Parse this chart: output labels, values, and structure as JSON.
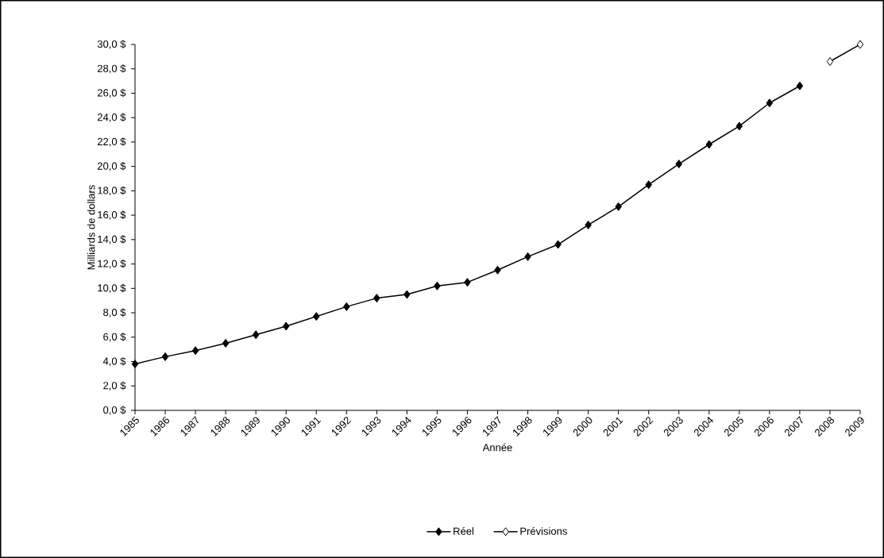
{
  "chart_data": {
    "type": "line",
    "xlabel": "Année",
    "ylabel": "Milliards de dollars",
    "categories": [
      "1985",
      "1986",
      "1987",
      "1988",
      "1989",
      "1990",
      "1991",
      "1992",
      "1993",
      "1994",
      "1995",
      "1996",
      "1997",
      "1998",
      "1999",
      "2000",
      "2001",
      "2002",
      "2003",
      "2004",
      "2005",
      "2006",
      "2007",
      "2008",
      "2009"
    ],
    "series": [
      {
        "name": "Réel",
        "color": "#000000",
        "values": [
          3.8,
          4.4,
          4.9,
          5.5,
          6.2,
          6.9,
          7.7,
          8.5,
          9.2,
          9.5,
          10.2,
          10.5,
          11.5,
          12.6,
          13.6,
          15.2,
          16.7,
          18.5,
          20.2,
          21.8,
          23.3,
          25.2,
          26.6,
          null,
          null
        ]
      },
      {
        "name": "Prévisions",
        "color": "#000000",
        "values": [
          null,
          null,
          null,
          null,
          null,
          null,
          null,
          null,
          null,
          null,
          null,
          null,
          null,
          null,
          null,
          null,
          null,
          null,
          null,
          null,
          null,
          null,
          null,
          28.6,
          30.0
        ]
      }
    ],
    "ylim": [
      0,
      30
    ],
    "yticks": [
      {
        "value": 0,
        "label": "0,0 $"
      },
      {
        "value": 2,
        "label": "2,0 $"
      },
      {
        "value": 4,
        "label": "4,0 $"
      },
      {
        "value": 6,
        "label": "6,0 $"
      },
      {
        "value": 8,
        "label": "8,0 $"
      },
      {
        "value": 10,
        "label": "10,0 $"
      },
      {
        "value": 12,
        "label": "12,0 $"
      },
      {
        "value": 14,
        "label": "14,0 $"
      },
      {
        "value": 16,
        "label": "16,0 $"
      },
      {
        "value": 18,
        "label": "18,0 $"
      },
      {
        "value": 20,
        "label": "20,0 $"
      },
      {
        "value": 22,
        "label": "22,0 $"
      },
      {
        "value": 24,
        "label": "24,0 $"
      },
      {
        "value": 26,
        "label": "26,0 $"
      },
      {
        "value": 28,
        "label": "28,0 $"
      },
      {
        "value": 30,
        "label": "30,0 $"
      }
    ],
    "grid": false,
    "legend": "bottom",
    "marker": "diamond",
    "line_style": "solid"
  }
}
